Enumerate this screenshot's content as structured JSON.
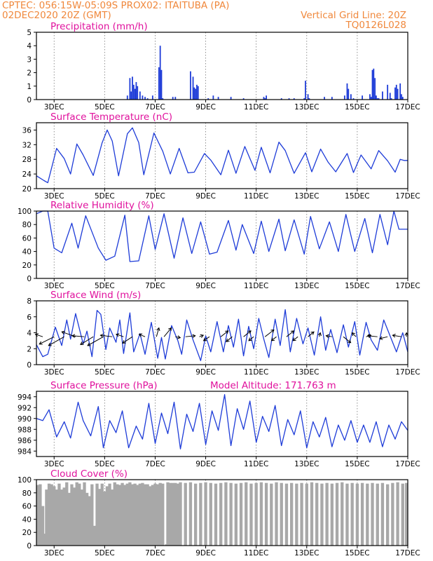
{
  "header": {
    "line1_left": "CPTEC:   056:15W-05:09S   PROX02: ITAITUBA (PA)",
    "line2_left": "02DEC2020 20Z (GMT)",
    "line2_right": "Vertical Grid Line: 20Z",
    "line3_right": "TQ0126L028"
  },
  "colors": {
    "header": "#f0883c",
    "title": "#e0119d",
    "series": "#1e3cd8",
    "cloud": "#a8a8a8"
  },
  "x_axis": {
    "ticks": [
      3,
      5,
      7,
      9,
      11,
      13,
      15,
      17
    ],
    "tick_labels": [
      "3DEC",
      "5DEC",
      "7DEC",
      "9DEC",
      "11DEC",
      "13DEC",
      "15DEC",
      "17DEC"
    ],
    "range": [
      2.3,
      17.0
    ]
  },
  "chart_data": [
    {
      "id": "precip",
      "type": "bar",
      "title": "Precipitation (mm/h)",
      "ylim": [
        0,
        5
      ],
      "yticks": [
        0,
        1,
        2,
        3,
        4,
        5
      ],
      "x": [
        5.9,
        6.0,
        6.05,
        6.1,
        6.15,
        6.2,
        6.25,
        6.3,
        6.4,
        6.5,
        6.6,
        6.7,
        6.9,
        7.15,
        7.2,
        7.25,
        7.3,
        7.7,
        7.8,
        8.4,
        8.5,
        8.55,
        8.6,
        8.65,
        8.7,
        9.1,
        9.3,
        9.5,
        10.0,
        10.5,
        11.3,
        11.35,
        11.4,
        12.0,
        12.3,
        12.5,
        12.9,
        12.95,
        13.05,
        13.1,
        13.7,
        14.0,
        14.5,
        14.6,
        14.65,
        14.75,
        14.85,
        15.2,
        15.5,
        15.55,
        15.6,
        15.65,
        15.7,
        15.75,
        15.8,
        15.85,
        16.0,
        16.2,
        16.3,
        16.35,
        16.5,
        16.55,
        16.6,
        16.7,
        16.75,
        16.8
      ],
      "values": [
        0.3,
        1.6,
        0.6,
        1.7,
        1.1,
        0.8,
        1.3,
        1.0,
        0.6,
        0.3,
        0.2,
        0.1,
        0.3,
        2.4,
        4.0,
        2.2,
        0.1,
        0.2,
        0.2,
        2.1,
        1.7,
        0.9,
        0.8,
        1.1,
        1.0,
        0.1,
        0.3,
        0.2,
        0.2,
        0.1,
        0.2,
        0.1,
        0.3,
        0.1,
        0.1,
        0.1,
        0.1,
        1.4,
        0.4,
        0.1,
        0.2,
        0.2,
        0.3,
        1.2,
        0.8,
        0.4,
        0.1,
        0.3,
        0.4,
        0.2,
        2.2,
        2.3,
        1.6,
        0.3,
        0.1,
        0.1,
        0.6,
        1.1,
        0.5,
        0.1,
        0.9,
        1.1,
        0.8,
        1.2,
        0.4,
        0.2
      ]
    },
    {
      "id": "temp",
      "type": "line",
      "title": "Surface Temperature (nC)",
      "ylim": [
        20,
        38
      ],
      "yticks": [
        20,
        24,
        28,
        32,
        36
      ],
      "x": [
        2.3,
        2.6,
        2.75,
        3.1,
        3.4,
        3.65,
        3.9,
        4.15,
        4.55,
        4.9,
        5.1,
        5.3,
        5.55,
        5.9,
        6.1,
        6.35,
        6.55,
        6.95,
        7.3,
        7.6,
        7.95,
        8.3,
        8.55,
        8.95,
        9.2,
        9.6,
        9.9,
        10.2,
        10.55,
        10.95,
        11.2,
        11.55,
        11.9,
        12.15,
        12.5,
        12.95,
        13.2,
        13.55,
        13.85,
        14.15,
        14.6,
        14.85,
        15.15,
        15.55,
        15.85,
        16.2,
        16.5,
        16.7,
        16.85,
        17.0
      ],
      "values": [
        23.5,
        22.2,
        21.6,
        31.0,
        28.2,
        24.0,
        32.2,
        29.2,
        23.6,
        32.5,
        36.0,
        33.0,
        23.5,
        35.0,
        36.6,
        32.6,
        23.8,
        35.2,
        30.2,
        24.0,
        31.0,
        24.3,
        24.5,
        29.6,
        27.8,
        23.8,
        30.5,
        24.2,
        31.5,
        25.0,
        31.3,
        24.3,
        32.7,
        30.4,
        24.2,
        29.8,
        24.6,
        30.8,
        27.2,
        24.6,
        29.6,
        24.4,
        29.2,
        25.4,
        30.4,
        27.6,
        24.5,
        28.0,
        27.7,
        27.7
      ]
    },
    {
      "id": "rh",
      "type": "line",
      "title": "Relative Humidity (%)",
      "ylim": [
        0,
        100
      ],
      "yticks": [
        0,
        20,
        40,
        60,
        80,
        100
      ],
      "x": [
        2.3,
        2.55,
        2.75,
        3.0,
        3.3,
        3.7,
        3.95,
        4.25,
        4.75,
        5.05,
        5.4,
        5.8,
        6.0,
        6.35,
        6.75,
        7.0,
        7.35,
        7.75,
        8.1,
        8.45,
        8.8,
        9.15,
        9.45,
        9.9,
        10.2,
        10.45,
        10.9,
        11.2,
        11.5,
        11.9,
        12.15,
        12.5,
        12.9,
        13.15,
        13.5,
        13.9,
        14.25,
        14.55,
        14.9,
        15.3,
        15.6,
        15.9,
        16.2,
        16.45,
        16.65,
        16.85,
        17.0
      ],
      "values": [
        96,
        100,
        100,
        45,
        38,
        82,
        45,
        93,
        45,
        27,
        33,
        94,
        25,
        26,
        93,
        43,
        96,
        30,
        90,
        37,
        84,
        36,
        39,
        86,
        42,
        80,
        37,
        85,
        40,
        88,
        41,
        87,
        36,
        92,
        44,
        84,
        40,
        95,
        40,
        89,
        38,
        95,
        50,
        100,
        73,
        73,
        73
      ]
    },
    {
      "id": "wind",
      "type": "line",
      "title": "Surface Wind (m/s)",
      "ylim": [
        0,
        8
      ],
      "yticks": [
        0,
        2,
        4,
        6,
        8
      ],
      "x": [
        2.3,
        2.55,
        2.75,
        3.05,
        3.3,
        3.5,
        3.65,
        3.85,
        4.15,
        4.3,
        4.5,
        4.7,
        4.85,
        5.05,
        5.2,
        5.45,
        5.6,
        5.75,
        6.0,
        6.15,
        6.4,
        6.6,
        6.85,
        7.1,
        7.25,
        7.4,
        7.65,
        7.9,
        8.05,
        8.25,
        8.5,
        8.8,
        9.0,
        9.2,
        9.45,
        9.7,
        9.9,
        10.1,
        10.3,
        10.5,
        10.7,
        10.9,
        11.1,
        11.3,
        11.5,
        11.75,
        11.95,
        12.15,
        12.35,
        12.6,
        12.85,
        13.05,
        13.3,
        13.55,
        13.75,
        13.95,
        14.2,
        14.45,
        14.65,
        14.9,
        15.1,
        15.35,
        15.55,
        15.8,
        16.05,
        16.3,
        16.55,
        16.8,
        17.0
      ],
      "values": [
        2.5,
        1.0,
        1.3,
        4.7,
        2.4,
        5.6,
        3.2,
        6.4,
        2.6,
        4.2,
        1.0,
        6.8,
        6.3,
        1.9,
        4.6,
        2.8,
        5.6,
        1.4,
        6.5,
        1.6,
        3.9,
        1.3,
        5.3,
        0.8,
        3.4,
        0.7,
        4.9,
        3.0,
        1.3,
        5.6,
        3.1,
        0.5,
        3.6,
        1.6,
        5.4,
        1.6,
        4.9,
        2.2,
        5.7,
        1.1,
        4.8,
        2.0,
        5.8,
        3.2,
        0.9,
        5.7,
        2.4,
        6.9,
        1.6,
        5.8,
        2.6,
        4.6,
        1.2,
        6.0,
        1.8,
        4.4,
        1.5,
        5.0,
        2.2,
        5.4,
        1.2,
        5.3,
        3.1,
        1.8,
        5.6,
        3.6,
        1.6,
        4.0,
        1.6
      ]
    },
    {
      "id": "pressure",
      "type": "line",
      "title": "Surface Pressure (hPa)",
      "annotation": "Model Altitude: 171.763 m",
      "ylim": [
        983,
        995
      ],
      "yticks": [
        984,
        986,
        988,
        990,
        992,
        994
      ],
      "x": [
        2.3,
        2.55,
        2.8,
        3.1,
        3.4,
        3.65,
        3.95,
        4.15,
        4.45,
        4.75,
        4.95,
        5.2,
        5.45,
        5.7,
        5.95,
        6.25,
        6.5,
        6.75,
        7.0,
        7.25,
        7.5,
        7.75,
        8.0,
        8.25,
        8.5,
        8.75,
        9.0,
        9.25,
        9.5,
        9.75,
        10.0,
        10.25,
        10.5,
        10.75,
        11.0,
        11.25,
        11.5,
        11.75,
        12.0,
        12.25,
        12.5,
        12.75,
        13.0,
        13.25,
        13.5,
        13.75,
        14.0,
        14.25,
        14.5,
        14.75,
        15.0,
        15.25,
        15.5,
        15.75,
        16.0,
        16.25,
        16.5,
        16.75,
        17.0
      ],
      "values": [
        990.0,
        989.6,
        991.6,
        986.6,
        989.4,
        986.4,
        993.0,
        989.6,
        986.8,
        992.2,
        984.6,
        989.6,
        987.4,
        991.4,
        984.6,
        988.6,
        986.2,
        992.8,
        985.4,
        991.0,
        987.2,
        993.0,
        984.4,
        990.8,
        987.6,
        992.8,
        985.2,
        991.4,
        987.8,
        994.4,
        985.0,
        991.8,
        988.0,
        993.2,
        985.6,
        990.4,
        987.6,
        992.4,
        985.0,
        989.8,
        987.0,
        991.4,
        984.6,
        989.4,
        986.6,
        990.2,
        984.8,
        988.8,
        986.0,
        989.6,
        985.6,
        988.8,
        985.6,
        989.4,
        984.8,
        988.8,
        986.2,
        989.4,
        987.8
      ]
    },
    {
      "id": "cloud",
      "type": "bar",
      "title": "Cloud Cover (%)",
      "ylim": [
        0,
        100
      ],
      "yticks": [
        0,
        20,
        40,
        60,
        80,
        100
      ],
      "x": [
        2.35,
        2.45,
        2.55,
        2.6,
        2.7,
        2.8,
        2.9,
        3.0,
        3.1,
        3.2,
        3.3,
        3.4,
        3.5,
        3.6,
        3.7,
        3.8,
        3.9,
        4.0,
        4.1,
        4.2,
        4.3,
        4.4,
        4.5,
        4.6,
        4.7,
        4.8,
        4.9,
        5.0,
        5.1,
        5.2,
        5.3,
        5.4,
        5.5,
        5.6,
        5.7,
        5.8,
        5.9,
        6.0,
        6.1,
        6.2,
        6.3,
        6.4,
        6.5,
        6.6,
        6.7,
        6.8,
        6.9,
        7.0,
        7.1,
        7.2,
        7.3,
        7.45,
        7.5,
        7.6,
        7.7,
        7.8,
        7.9,
        8.0,
        8.2,
        8.4,
        8.6,
        8.8,
        9.0,
        9.2,
        9.4,
        9.6,
        9.8,
        10.0,
        10.2,
        10.4,
        10.6,
        10.8,
        11.0,
        11.2,
        11.4,
        11.6,
        11.8,
        12.0,
        12.2,
        12.4,
        12.6,
        12.8,
        13.0,
        13.2,
        13.4,
        13.6,
        13.8,
        14.0,
        14.2,
        14.4,
        14.6,
        14.8,
        15.0,
        15.2,
        15.4,
        15.6,
        15.8,
        16.0,
        16.2,
        16.4,
        16.6,
        16.8,
        16.95
      ],
      "values": [
        92,
        93,
        60,
        18,
        85,
        94,
        93,
        90,
        85,
        94,
        85,
        88,
        96,
        80,
        93,
        88,
        96,
        94,
        85,
        96,
        80,
        75,
        93,
        30,
        94,
        86,
        94,
        82,
        90,
        94,
        85,
        96,
        93,
        92,
        95,
        92,
        94,
        96,
        93,
        94,
        92,
        94,
        95,
        93,
        93,
        90,
        92,
        94,
        93,
        95,
        94,
        2,
        96,
        95,
        95,
        95,
        94,
        96,
        95,
        96,
        94,
        95,
        96,
        95,
        94,
        95,
        96,
        95,
        94,
        95,
        96,
        94,
        95,
        96,
        95,
        94,
        96,
        95,
        94,
        95,
        94,
        95,
        94,
        96,
        95,
        94,
        95,
        94,
        95,
        96,
        94,
        95,
        94,
        95,
        94,
        95,
        94,
        95,
        93,
        95,
        96,
        94,
        95
      ]
    }
  ],
  "wind_vectors": {
    "x": [
      2.55,
      3.0,
      3.4,
      3.85,
      4.2,
      4.55,
      4.95,
      5.3,
      5.75,
      6.1,
      6.6,
      7.05,
      7.35,
      7.8,
      8.2,
      8.75,
      9.15,
      9.6,
      10.05,
      10.5,
      10.9,
      11.35,
      11.8,
      12.2,
      12.65,
      13.05,
      13.5,
      14.0,
      14.45,
      14.95,
      15.35,
      15.8,
      16.2,
      16.75,
      16.95
    ],
    "u": [
      -1.5,
      -3.0,
      -3.2,
      -2.8,
      -2.5,
      -2.6,
      -3.2,
      -2.4,
      -1.5,
      -2.0,
      -1.2,
      0.5,
      1.5,
      1.0,
      2.0,
      0.8,
      -1.2,
      1.5,
      -1.2,
      1.5,
      -1.0,
      1.8,
      -1.0,
      1.5,
      -1.0,
      1.2,
      0.2,
      -1.2,
      1.5,
      -0.8,
      1.0,
      -2.0,
      -1.6,
      -1.8,
      0.0
    ],
    "v": [
      0.5,
      -1.5,
      -1.8,
      1.0,
      0.2,
      -1.6,
      -1.8,
      0.3,
      0.5,
      -1.3,
      0.5,
      1.8,
      1.8,
      -0.2,
      0.2,
      0.3,
      -0.8,
      1.2,
      -1.0,
      1.2,
      -0.8,
      1.4,
      -0.8,
      1.2,
      -0.8,
      1.0,
      0.8,
      0.2,
      -1.2,
      0.8,
      0.3,
      0.2,
      -0.4,
      0.3,
      0.8
    ]
  }
}
